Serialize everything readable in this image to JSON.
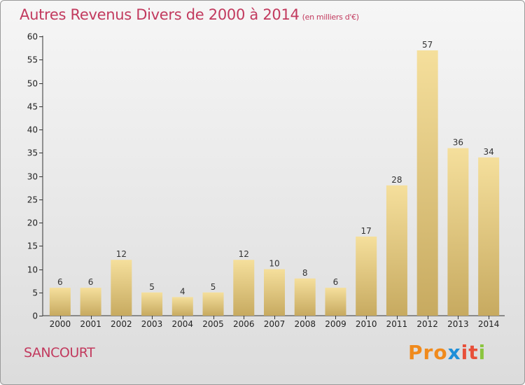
{
  "header": {
    "title": "Autres Revenus Divers de 2000 à 2014",
    "subtitle": "(en milliers d'€)"
  },
  "footer": {
    "place": "SANCOURT",
    "brand": "Proxiti"
  },
  "colors": {
    "title": "#c23a5e",
    "bar_light": "#f5df9c",
    "bar_dark": "#c7aa60",
    "brand_letters": [
      "#f08a1c",
      "#f08a1c",
      "#f08a1c",
      "#1e8fd8",
      "#e8503a",
      "#e8503a",
      "#8bc53f"
    ]
  },
  "chart_data": {
    "type": "bar",
    "categories": [
      "2000",
      "2001",
      "2002",
      "2003",
      "2004",
      "2005",
      "2006",
      "2007",
      "2008",
      "2009",
      "2010",
      "2011",
      "2012",
      "2013",
      "2014"
    ],
    "values": [
      6,
      6,
      12,
      5,
      4,
      5,
      12,
      10,
      8,
      6,
      17,
      28,
      57,
      36,
      34
    ],
    "ylim": [
      0,
      60
    ],
    "yticks": [
      0,
      5,
      10,
      15,
      20,
      25,
      30,
      35,
      40,
      45,
      50,
      55,
      60
    ],
    "grid": false
  }
}
